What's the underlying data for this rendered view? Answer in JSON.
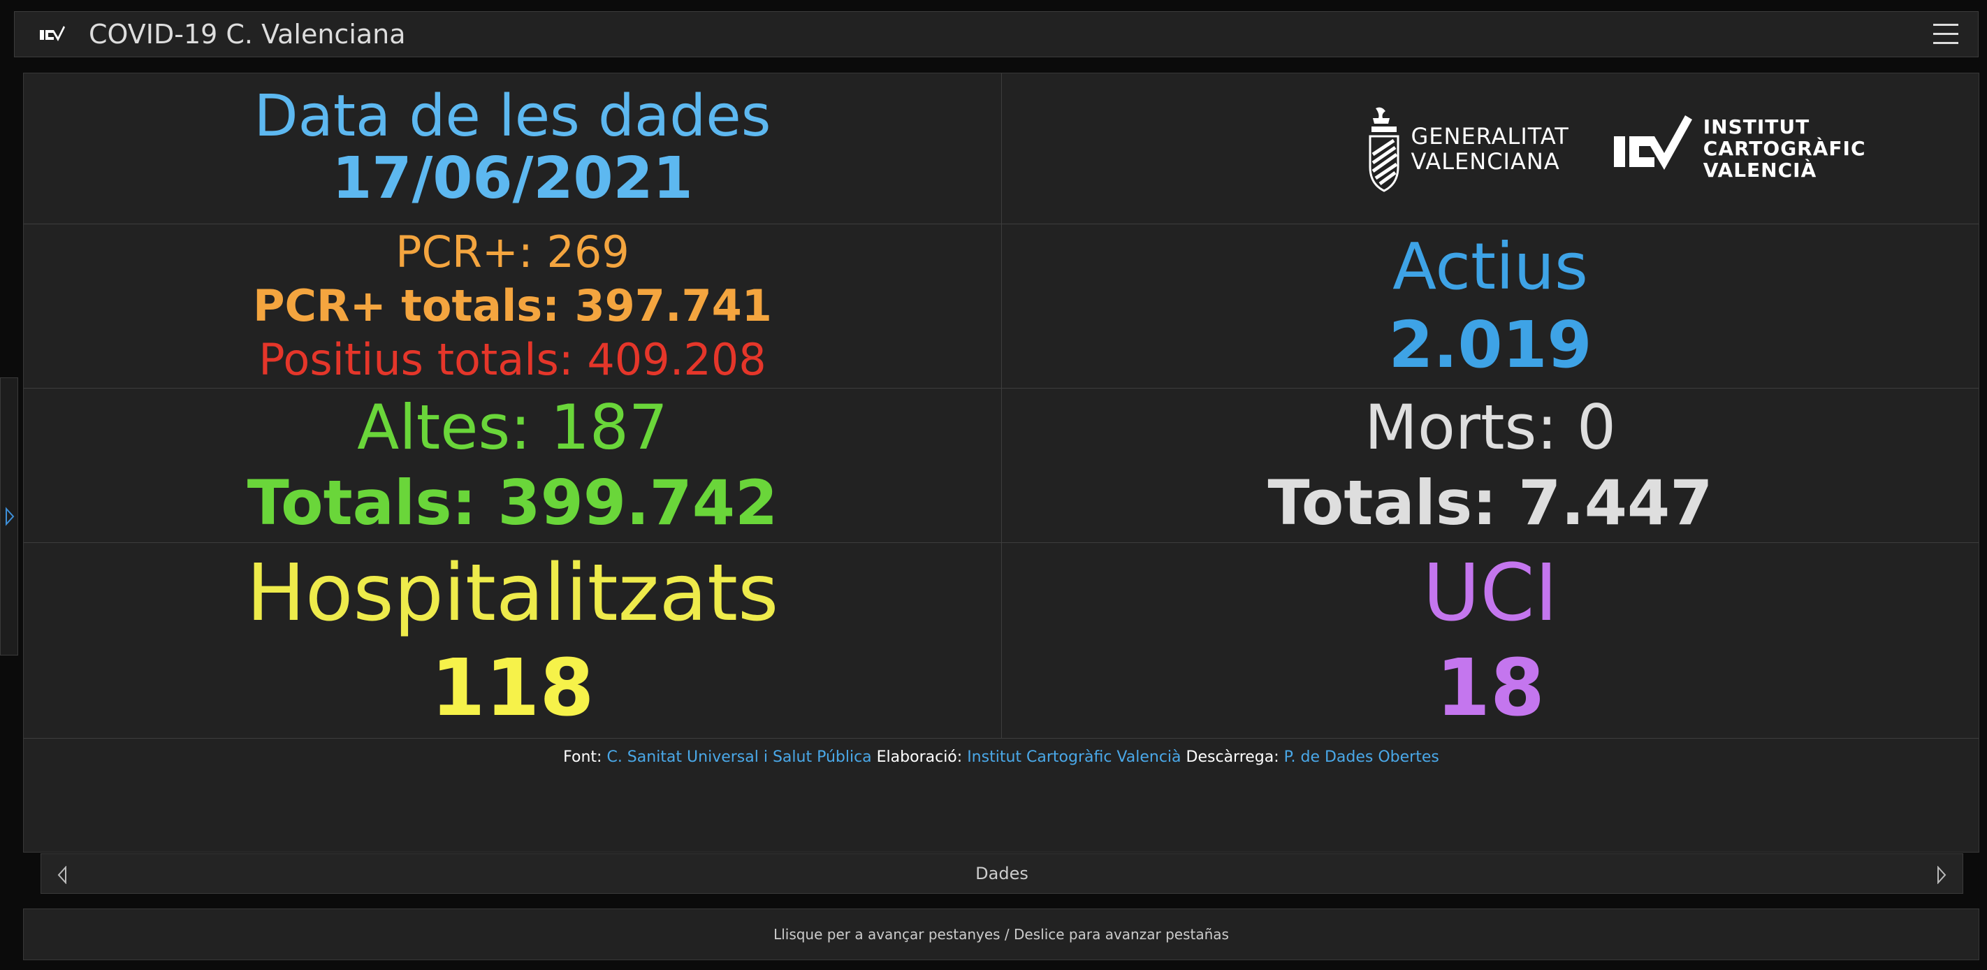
{
  "header": {
    "title": "COVID-19 C. Valenciana",
    "logo_icon": "icv-logo-icon",
    "menu_icon": "hamburger-menu-icon"
  },
  "sidebar_toggle": {
    "icon": "chevron-right-icon"
  },
  "dashboard": {
    "date": {
      "label": "Data de les dades",
      "value": "17/06/2021"
    },
    "logos": {
      "gva_line1": "GENERALITAT",
      "gva_line2": "VALENCIANA",
      "icv_line1": "INSTITUT",
      "icv_line2": "CARTOGRÀFIC",
      "icv_line3": "VALENCIÀ"
    },
    "pcr": {
      "daily": "PCR+: 269",
      "total": "PCR+ totals: 397.741",
      "positives_total": "Positius totals: 409.208"
    },
    "active": {
      "label": "Actius",
      "value": "2.019"
    },
    "discharges": {
      "daily": "Altes: 187",
      "total": "Totals: 399.742"
    },
    "deaths": {
      "daily": "Morts: 0",
      "total": "Totals: 7.447"
    },
    "hospitalized": {
      "label": "Hospitalitzats",
      "value": "118"
    },
    "icu": {
      "label": "UCI",
      "value": "18"
    }
  },
  "footer": {
    "source_label": "Font:",
    "source_link": "C. Sanitat Universal i Salut Pública",
    "made_by_label": "Elaboració:",
    "made_by_link": "Institut Cartogràfic Valencià",
    "download_label": "Descàrrega:",
    "download_link": "P. de Dades Obertes"
  },
  "pager": {
    "label": "Dades"
  },
  "bottom_hint": "Llisque per a avançar pestanyes / Deslice para avanzar pestañas",
  "colors": {
    "background": "#0b0b0b",
    "panel": "#222222",
    "date": "#5db8f0",
    "pcr": "#f4a53f",
    "positives": "#e5362a",
    "active": "#3ea3e6",
    "discharges": "#6ad63a",
    "deaths": "#dedede",
    "hospitalized": "#eeeb4b",
    "icu": "#c476ee",
    "link": "#4aa8e8"
  }
}
